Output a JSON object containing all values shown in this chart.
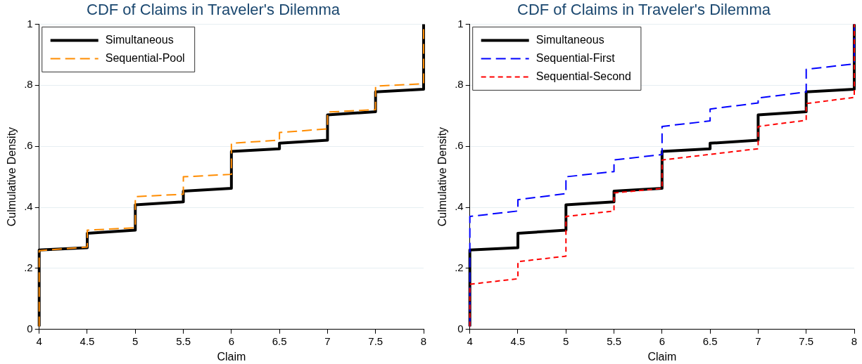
{
  "chart_data": [
    {
      "type": "line",
      "title": "CDF of Claims in Traveler's Dilemma",
      "xlabel": "Claim",
      "ylabel": "Culmulative Density",
      "xlim": [
        4,
        8
      ],
      "xticks": [
        4,
        4.5,
        5,
        5.5,
        6,
        6.5,
        7,
        7.5,
        8
      ],
      "ylim": [
        0,
        1
      ],
      "yticks": [
        {
          "value": 0,
          "label": "0"
        },
        {
          "value": 0.2,
          "label": ".2"
        },
        {
          "value": 0.4,
          "label": ".4"
        },
        {
          "value": 0.6,
          "label": ".6"
        },
        {
          "value": 0.8,
          "label": ".8"
        },
        {
          "value": 1,
          "label": "1"
        }
      ],
      "grid": "y",
      "legend": "top left",
      "marker": "none",
      "series": [
        {
          "name": "Simultaneous",
          "color": "#000000",
          "line_style": "solid",
          "x": [
            4,
            4,
            4.5,
            4.5,
            5,
            5,
            5.5,
            5.5,
            6,
            6,
            6.5,
            6.5,
            7,
            7,
            7.5,
            7.5,
            8,
            8
          ],
          "values": [
            0.01,
            0.26,
            0.268,
            0.315,
            0.325,
            0.408,
            0.418,
            0.453,
            0.462,
            0.583,
            0.592,
            0.61,
            0.62,
            0.703,
            0.713,
            0.778,
            0.787,
            1
          ]
        },
        {
          "name": "Sequential-Pool",
          "color": "#ff8c00",
          "line_style": "dashed",
          "x": [
            4,
            4,
            4.5,
            4.5,
            5,
            5,
            5.5,
            5.5,
            6,
            6,
            6.5,
            6.5,
            7,
            7,
            7.5,
            7.5,
            8,
            8
          ],
          "values": [
            0.01,
            0.258,
            0.27,
            0.325,
            0.333,
            0.435,
            0.443,
            0.5,
            0.508,
            0.61,
            0.62,
            0.645,
            0.657,
            0.712,
            0.72,
            0.797,
            0.805,
            1
          ]
        }
      ]
    },
    {
      "type": "line",
      "title": "CDF of Claims in Traveler's Dilemma",
      "xlabel": "Claim",
      "ylabel": "Culmulative Density",
      "xlim": [
        4,
        8
      ],
      "xticks": [
        4,
        4.5,
        5,
        5.5,
        6,
        6.5,
        7,
        7.5,
        8
      ],
      "ylim": [
        0,
        1
      ],
      "yticks": [
        {
          "value": 0,
          "label": "0"
        },
        {
          "value": 0.2,
          "label": ".2"
        },
        {
          "value": 0.4,
          "label": ".4"
        },
        {
          "value": 0.6,
          "label": ".6"
        },
        {
          "value": 0.8,
          "label": ".8"
        },
        {
          "value": 1,
          "label": "1"
        }
      ],
      "grid": "y",
      "legend": "top left",
      "marker": "none",
      "series": [
        {
          "name": "Simultaneous",
          "color": "#000000",
          "line_style": "solid",
          "x": [
            4,
            4,
            4.5,
            4.5,
            5,
            5,
            5.5,
            5.5,
            6,
            6,
            6.5,
            6.5,
            7,
            7,
            7.5,
            7.5,
            8,
            8
          ],
          "values": [
            0.01,
            0.26,
            0.268,
            0.315,
            0.325,
            0.408,
            0.418,
            0.453,
            0.462,
            0.583,
            0.592,
            0.61,
            0.62,
            0.703,
            0.713,
            0.778,
            0.787,
            1
          ]
        },
        {
          "name": "Sequential-First",
          "color": "#0000ff",
          "line_style": "dashed",
          "x": [
            4,
            4,
            4.5,
            4.5,
            5,
            5,
            5.5,
            5.5,
            6,
            6,
            6.5,
            6.5,
            7,
            7,
            7.5,
            7.5,
            8,
            8
          ],
          "values": [
            0.01,
            0.37,
            0.388,
            0.425,
            0.445,
            0.5,
            0.517,
            0.555,
            0.573,
            0.665,
            0.683,
            0.722,
            0.742,
            0.758,
            0.778,
            0.852,
            0.87,
            1
          ]
        },
        {
          "name": "Sequential-Second",
          "color": "#ff0000",
          "line_style": "dotted",
          "x": [
            4,
            4,
            4.5,
            4.5,
            5,
            5,
            5.5,
            5.5,
            6,
            6,
            7,
            7,
            7.5,
            7.5,
            8,
            8
          ],
          "values": [
            0.01,
            0.148,
            0.166,
            0.222,
            0.24,
            0.37,
            0.388,
            0.447,
            0.462,
            0.555,
            0.592,
            0.665,
            0.685,
            0.74,
            0.76,
            1
          ]
        }
      ]
    }
  ]
}
